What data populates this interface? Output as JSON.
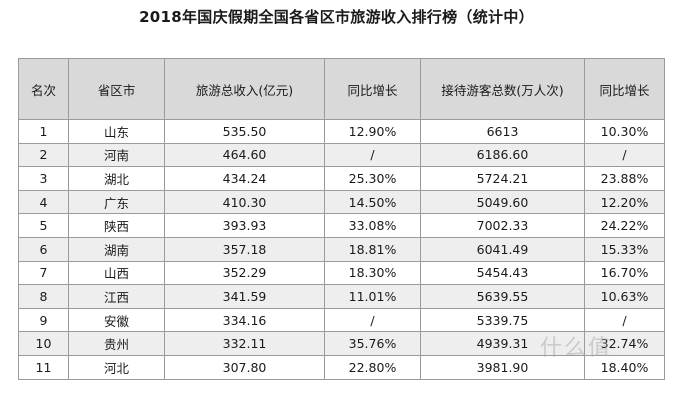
{
  "title": "2018年国庆假期全国各省区市旅游收入排行榜（统计中）",
  "watermark": "什么值",
  "chart_data": {
    "type": "table",
    "title": "2018年国庆假期全国各省区市旅游收入排行榜（统计中）",
    "columns": [
      "名次",
      "省区市",
      "旅游总收入(亿元)",
      "同比增长",
      "接待游客总数(万人次)",
      "同比增长"
    ],
    "rows": [
      [
        "1",
        "山东",
        "535.50",
        "12.90%",
        "6613",
        "10.30%"
      ],
      [
        "2",
        "河南",
        "464.60",
        "/",
        "6186.60",
        "/"
      ],
      [
        "3",
        "湖北",
        "434.24",
        "25.30%",
        "5724.21",
        "23.88%"
      ],
      [
        "4",
        "广东",
        "410.30",
        "14.50%",
        "5049.60",
        "12.20%"
      ],
      [
        "5",
        "陕西",
        "393.93",
        "33.08%",
        "7002.33",
        "24.22%"
      ],
      [
        "6",
        "湖南",
        "357.18",
        "18.81%",
        "6041.49",
        "15.33%"
      ],
      [
        "7",
        "山西",
        "352.29",
        "18.30%",
        "5454.43",
        "16.70%"
      ],
      [
        "8",
        "江西",
        "341.59",
        "11.01%",
        "5639.55",
        "10.63%"
      ],
      [
        "9",
        "安徽",
        "334.16",
        "/",
        "5339.75",
        "/"
      ],
      [
        "10",
        "贵州",
        "332.11",
        "35.76%",
        "4939.31",
        "32.74%"
      ],
      [
        "11",
        "河北",
        "307.80",
        "22.80%",
        "3981.90",
        "18.40%"
      ]
    ]
  }
}
